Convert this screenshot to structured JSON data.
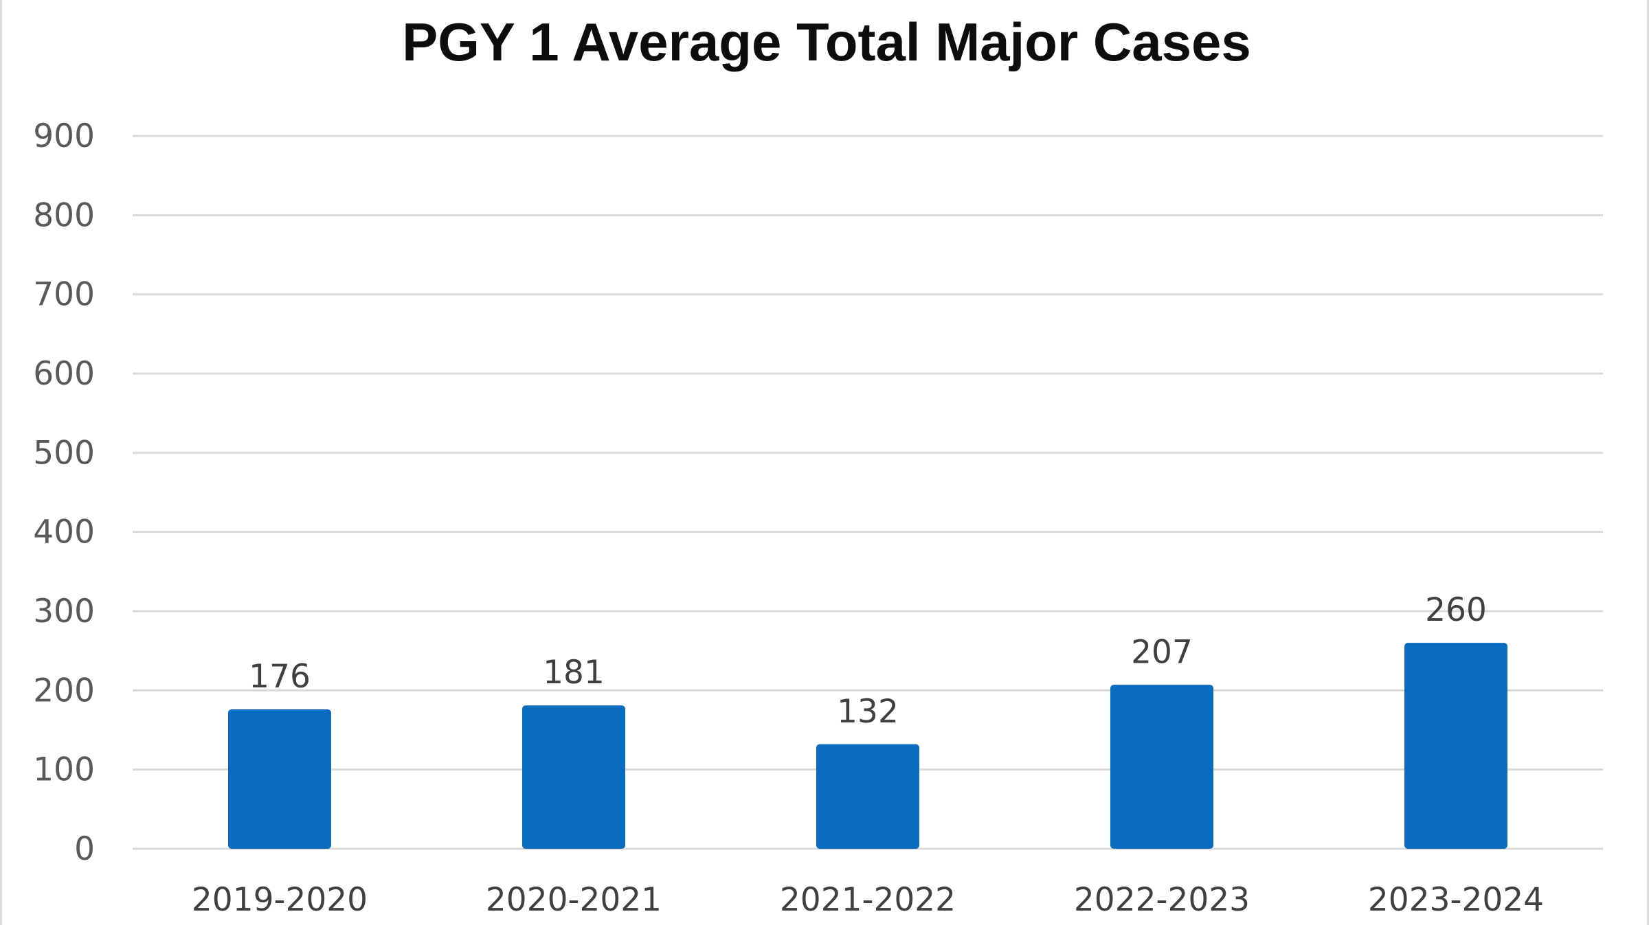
{
  "chart_data": {
    "type": "bar",
    "title": "PGY 1 Average Total Major Cases",
    "xlabel": "",
    "ylabel": "",
    "categories": [
      "2019-2020",
      "2020-2021",
      "2021-2022",
      "2022-2023",
      "2023-2024"
    ],
    "values": [
      176,
      181,
      132,
      207,
      260
    ],
    "data_labels": [
      "176",
      "181",
      "132",
      "207",
      "260"
    ],
    "ylim": [
      0,
      900
    ],
    "yticks": [
      0,
      100,
      200,
      300,
      400,
      500,
      600,
      700,
      800,
      900
    ],
    "grid": true,
    "legend": "none",
    "bar_color": "#0a6cbf"
  }
}
